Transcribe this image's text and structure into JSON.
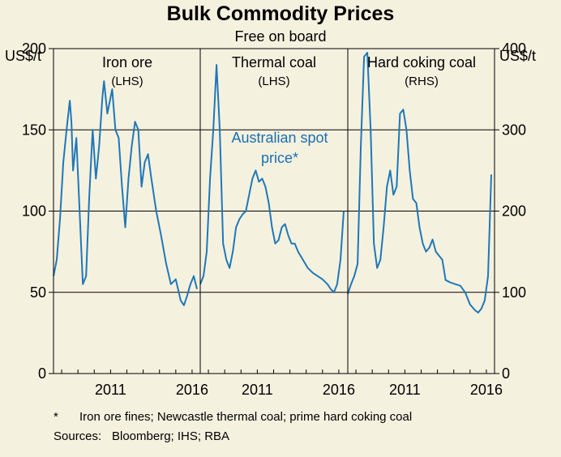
{
  "chart_data": {
    "type": "line",
    "title": "Bulk Commodity Prices",
    "subtitle": "Free on board",
    "left_axis_label": "US$/t",
    "right_axis_label": "US$/t",
    "left_ylim": [
      0,
      200
    ],
    "left_ticks": [
      "0",
      "50",
      "100",
      "150",
      "200"
    ],
    "right_ylim": [
      0,
      400
    ],
    "right_ticks": [
      "0",
      "100",
      "200",
      "300",
      "400"
    ],
    "x_ticks": [
      "2011",
      "2016"
    ],
    "annotation": "Australian spot price*",
    "annotation_lines": [
      "Australian spot",
      "price*"
    ],
    "panels": [
      {
        "name": "Iron ore",
        "axis_note": "(LHS)",
        "axis": "left",
        "series": [
          {
            "name": "Australian spot price",
            "x": [
              2008.0,
              2008.2,
              2008.4,
              2008.6,
              2008.8,
              2009.0,
              2009.1,
              2009.2,
              2009.4,
              2009.6,
              2009.8,
              2010.0,
              2010.2,
              2010.4,
              2010.6,
              2010.8,
              2011.0,
              2011.1,
              2011.3,
              2011.6,
              2011.8,
              2012.0,
              2012.2,
              2012.4,
              2012.6,
              2012.8,
              2013.0,
              2013.2,
              2013.4,
              2013.6,
              2013.8,
              2014.0,
              2014.3,
              2014.6,
              2014.9,
              2015.2,
              2015.5,
              2015.8,
              2016.0,
              2016.2,
              2016.4,
              2016.6,
              2016.8
            ],
            "values": [
              60,
              70,
              95,
              130,
              150,
              168,
              155,
              125,
              145,
              100,
              55,
              60,
              110,
              150,
              120,
              140,
              170,
              180,
              160,
              175,
              150,
              145,
              115,
              90,
              120,
              140,
              155,
              150,
              115,
              130,
              135,
              120,
              100,
              85,
              68,
              55,
              58,
              45,
              42,
              48,
              55,
              60,
              52
            ]
          }
        ]
      },
      {
        "name": "Thermal coal",
        "axis_note": "(LHS)",
        "axis": "left",
        "series": [
          {
            "name": "Australian spot price",
            "x": [
              2008.0,
              2008.2,
              2008.4,
              2008.6,
              2008.8,
              2009.0,
              2009.2,
              2009.4,
              2009.6,
              2009.8,
              2010.0,
              2010.2,
              2010.4,
              2010.6,
              2010.8,
              2011.0,
              2011.2,
              2011.4,
              2011.6,
              2011.8,
              2012.0,
              2012.2,
              2012.4,
              2012.6,
              2012.8,
              2013.0,
              2013.2,
              2013.4,
              2013.6,
              2013.8,
              2014.0,
              2014.3,
              2014.6,
              2014.9,
              2015.2,
              2015.5,
              2015.8,
              2016.0,
              2016.2,
              2016.4,
              2016.6,
              2016.8
            ],
            "values": [
              55,
              60,
              75,
              120,
              150,
              190,
              150,
              80,
              70,
              65,
              75,
              90,
              95,
              98,
              100,
              110,
              120,
              125,
              118,
              120,
              115,
              105,
              90,
              80,
              82,
              90,
              92,
              85,
              80,
              80,
              75,
              70,
              65,
              62,
              60,
              58,
              55,
              52,
              50,
              55,
              70,
              100
            ]
          }
        ]
      },
      {
        "name": "Hard coking coal",
        "axis_note": "(RHS)",
        "axis": "right",
        "series": [
          {
            "name": "Australian spot price",
            "x": [
              2008.0,
              2008.2,
              2008.4,
              2008.6,
              2008.8,
              2009.0,
              2009.2,
              2009.4,
              2009.6,
              2009.8,
              2010.0,
              2010.2,
              2010.4,
              2010.6,
              2010.8,
              2011.0,
              2011.2,
              2011.4,
              2011.6,
              2011.8,
              2012.0,
              2012.2,
              2012.4,
              2012.6,
              2012.8,
              2013.0,
              2013.2,
              2013.4,
              2013.6,
              2013.8,
              2014.0,
              2014.3,
              2014.6,
              2014.9,
              2015.2,
              2015.5,
              2015.8,
              2016.0,
              2016.2,
              2016.4,
              2016.6,
              2016.8
            ],
            "values": [
              98,
              110,
              120,
              135,
              280,
              390,
              395,
              300,
              160,
              130,
              140,
              180,
              230,
              250,
              220,
              230,
              320,
              325,
              300,
              250,
              215,
              210,
              180,
              160,
              150,
              155,
              165,
              150,
              145,
              140,
              115,
              112,
              110,
              108,
              100,
              85,
              78,
              75,
              80,
              90,
              120,
              245
            ]
          }
        ]
      }
    ]
  },
  "footnote": {
    "marker": "*",
    "text": "Iron ore fines; Newcastle thermal coal; prime hard coking coal"
  },
  "sources": {
    "label": "Sources:",
    "text": "Bloomberg; IHS; RBA"
  }
}
